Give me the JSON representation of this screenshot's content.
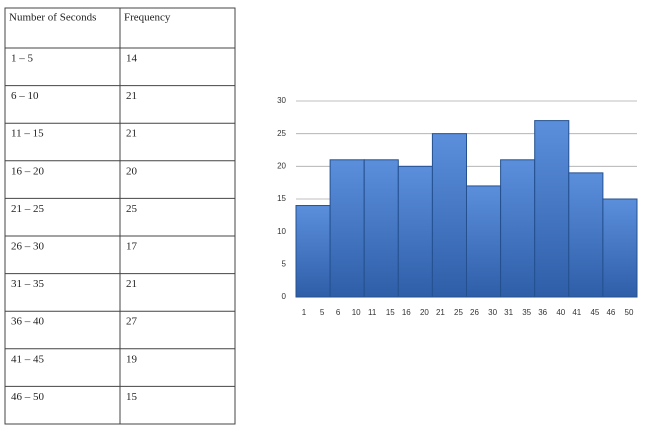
{
  "table": {
    "header": [
      "Number of Seconds",
      "Frequency"
    ],
    "rows": [
      [
        "1 – 5",
        "14"
      ],
      [
        "6 – 10",
        "21"
      ],
      [
        "11 – 15",
        "21"
      ],
      [
        "16 – 20",
        "20"
      ],
      [
        "21 – 25",
        "25"
      ],
      [
        "26 – 30",
        "17"
      ],
      [
        "31 – 35",
        "21"
      ],
      [
        "36 – 40",
        "27"
      ],
      [
        "41 – 45",
        "19"
      ],
      [
        "46 – 50",
        "15"
      ]
    ]
  },
  "chart_data": {
    "type": "histogram",
    "color": "#4a7fcf",
    "bin_labels": [
      [
        1,
        5
      ],
      [
        6,
        10
      ],
      [
        11,
        15
      ],
      [
        16,
        20
      ],
      [
        21,
        25
      ],
      [
        26,
        30
      ],
      [
        31,
        35
      ],
      [
        36,
        40
      ],
      [
        41,
        45
      ],
      [
        46,
        50
      ]
    ],
    "values": [
      14,
      21,
      21,
      20,
      25,
      17,
      21,
      27,
      19,
      15
    ],
    "ylim": [
      0,
      30
    ],
    "yticks": [
      0,
      5,
      10,
      15,
      20,
      25,
      30
    ],
    "grid": true
  }
}
